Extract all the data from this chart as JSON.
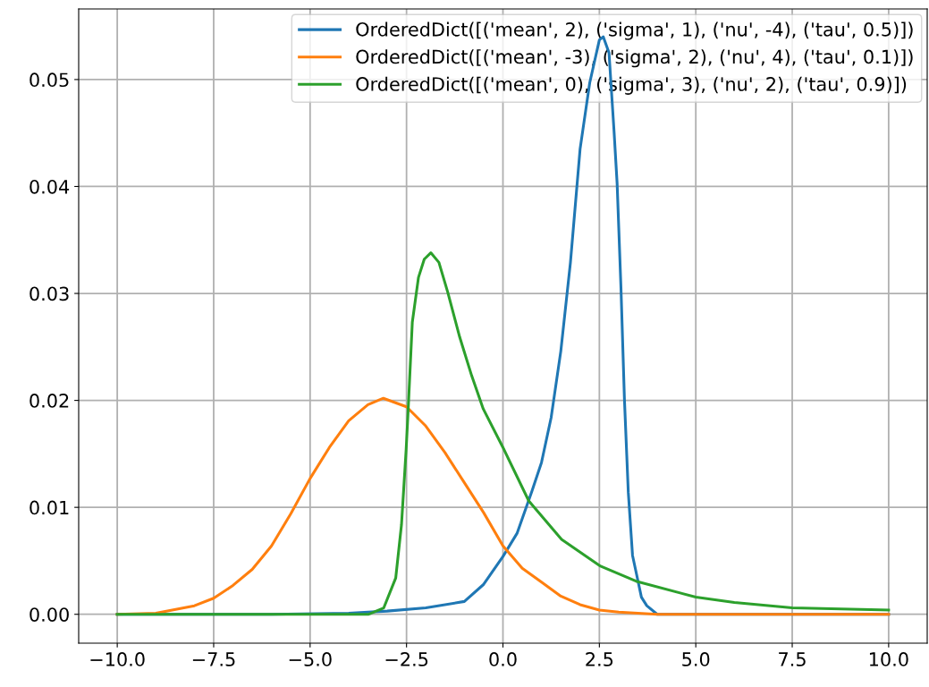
{
  "chart_data": {
    "type": "line",
    "legend": "top right",
    "grid": true,
    "xlim": [
      -11,
      11
    ],
    "ylim": [
      -0.0027,
      0.0566
    ],
    "xticks": [
      {
        "value": -10,
        "label": "−10.0"
      },
      {
        "value": -7.5,
        "label": "−7.5"
      },
      {
        "value": -5,
        "label": "−5.0"
      },
      {
        "value": -2.5,
        "label": "−2.5"
      },
      {
        "value": 0,
        "label": "0.0"
      },
      {
        "value": 2.5,
        "label": "2.5"
      },
      {
        "value": 5,
        "label": "5.0"
      },
      {
        "value": 7.5,
        "label": "7.5"
      },
      {
        "value": 10,
        "label": "10.0"
      }
    ],
    "yticks": [
      {
        "value": 0,
        "label": "0.00"
      },
      {
        "value": 0.01,
        "label": "0.01"
      },
      {
        "value": 0.02,
        "label": "0.02"
      },
      {
        "value": 0.03,
        "label": "0.03"
      },
      {
        "value": 0.04,
        "label": "0.04"
      },
      {
        "value": 0.05,
        "label": "0.05"
      }
    ],
    "series": [
      {
        "name": "OrderedDict([('mean', 2), ('sigma', 1), ('nu', -4), ('tau', 0.5)])",
        "color": "#1f77b4",
        "x": [
          -10,
          -6,
          -4,
          -3,
          -2,
          -1,
          -0.5,
          0,
          0.37,
          0.75,
          1,
          1.25,
          1.5,
          1.75,
          2,
          2.25,
          2.5,
          2.6,
          2.75,
          2.88,
          2.96,
          3.06,
          3.15,
          3.25,
          3.36,
          3.49,
          3.59,
          3.73,
          4,
          5,
          10
        ],
        "values": [
          0,
          0,
          0.0001,
          0.0003,
          0.0006,
          0.0012,
          0.0028,
          0.0054,
          0.0076,
          0.0115,
          0.0142,
          0.0184,
          0.0246,
          0.0329,
          0.0435,
          0.0497,
          0.0537,
          0.054,
          0.0525,
          0.0452,
          0.0403,
          0.0305,
          0.0201,
          0.0114,
          0.0055,
          0.0033,
          0.0016,
          0.0008,
          0,
          0,
          0
        ]
      },
      {
        "name": "OrderedDict([('mean', -3), ('sigma', 2), ('nu', 4), ('tau', 0.1)])",
        "color": "#ff7f0e",
        "x": [
          -10,
          -9,
          -8,
          -7.5,
          -7,
          -6.5,
          -6,
          -5.5,
          -5,
          -4.5,
          -4,
          -3.5,
          -3.1,
          -2.5,
          -2,
          -1.5,
          -1,
          -0.5,
          0,
          0.5,
          1,
          1.5,
          2,
          2.5,
          3,
          4,
          10
        ],
        "values": [
          0,
          0.0001,
          0.0008,
          0.0015,
          0.0027,
          0.0042,
          0.0064,
          0.0094,
          0.0127,
          0.0156,
          0.0181,
          0.0196,
          0.0202,
          0.0194,
          0.0176,
          0.0151,
          0.0123,
          0.0095,
          0.0064,
          0.0043,
          0.003,
          0.0017,
          0.0009,
          0.0004,
          0.0002,
          0,
          0
        ]
      },
      {
        "name": "OrderedDict([('mean', 0), ('sigma', 3), ('nu', 2), ('tau', 0.9)])",
        "color": "#2ca02c",
        "x": [
          -10,
          -3.48,
          -3.09,
          -2.78,
          -2.63,
          -2.51,
          -2.46,
          -2.35,
          -2.19,
          -2.04,
          -1.87,
          -1.66,
          -1.43,
          -1.12,
          -0.81,
          -0.51,
          0,
          0.67,
          1.52,
          2.53,
          3.45,
          5,
          6,
          7.5,
          10
        ],
        "values": [
          0,
          0,
          0.0006,
          0.0034,
          0.0084,
          0.0154,
          0.0189,
          0.0273,
          0.0315,
          0.0332,
          0.0338,
          0.0329,
          0.0301,
          0.0259,
          0.0223,
          0.0192,
          0.0156,
          0.0106,
          0.007,
          0.0045,
          0.0031,
          0.0016,
          0.0011,
          0.0006,
          0.0004
        ]
      }
    ]
  }
}
